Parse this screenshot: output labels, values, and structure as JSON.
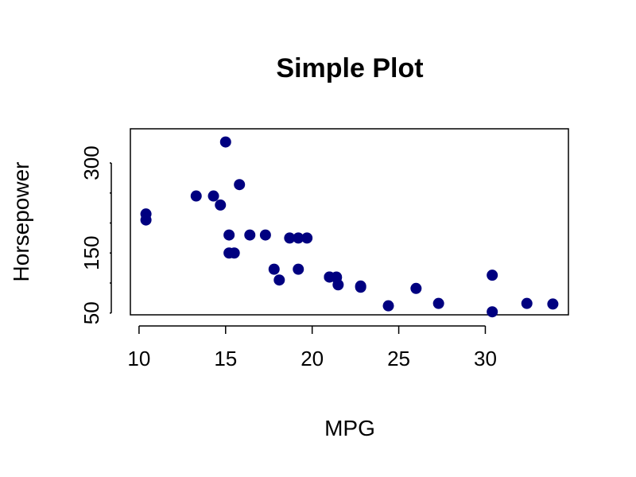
{
  "chart_data": {
    "type": "scatter",
    "title": "Simple Plot",
    "xlabel": "MPG",
    "ylabel": "Horsepower",
    "xlim": [
      9.5,
      34.8
    ],
    "ylim": [
      47,
      357
    ],
    "x_ticks": [
      10,
      15,
      20,
      25,
      30
    ],
    "y_ticks": [
      50,
      100,
      150,
      200,
      250,
      300
    ],
    "y_tick_labels": [
      "50",
      "",
      "150",
      "",
      "",
      "300"
    ],
    "grid": false,
    "legend": "none",
    "marker_color": "#000080",
    "points": [
      {
        "x": 21.0,
        "y": 110
      },
      {
        "x": 21.0,
        "y": 110
      },
      {
        "x": 22.8,
        "y": 93
      },
      {
        "x": 21.4,
        "y": 110
      },
      {
        "x": 18.7,
        "y": 175
      },
      {
        "x": 18.1,
        "y": 105
      },
      {
        "x": 14.3,
        "y": 245
      },
      {
        "x": 24.4,
        "y": 62
      },
      {
        "x": 22.8,
        "y": 95
      },
      {
        "x": 19.2,
        "y": 123
      },
      {
        "x": 17.8,
        "y": 123
      },
      {
        "x": 16.4,
        "y": 180
      },
      {
        "x": 17.3,
        "y": 180
      },
      {
        "x": 15.2,
        "y": 180
      },
      {
        "x": 10.4,
        "y": 205
      },
      {
        "x": 10.4,
        "y": 215
      },
      {
        "x": 14.7,
        "y": 230
      },
      {
        "x": 32.4,
        "y": 66
      },
      {
        "x": 30.4,
        "y": 52
      },
      {
        "x": 33.9,
        "y": 65
      },
      {
        "x": 21.5,
        "y": 97
      },
      {
        "x": 15.5,
        "y": 150
      },
      {
        "x": 15.2,
        "y": 150
      },
      {
        "x": 13.3,
        "y": 245
      },
      {
        "x": 19.2,
        "y": 175
      },
      {
        "x": 27.3,
        "y": 66
      },
      {
        "x": 26.0,
        "y": 91
      },
      {
        "x": 30.4,
        "y": 113
      },
      {
        "x": 15.8,
        "y": 264
      },
      {
        "x": 19.7,
        "y": 175
      },
      {
        "x": 15.0,
        "y": 335
      },
      {
        "x": 21.4,
        "y": 109
      }
    ]
  }
}
